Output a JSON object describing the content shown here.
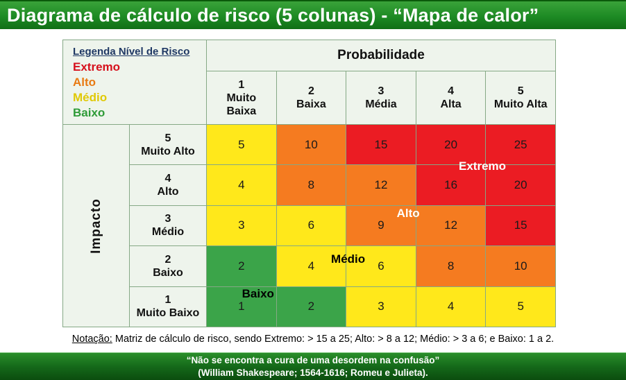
{
  "title": "Diagrama de cálculo de risco (5 colunas) - “Mapa de calor”",
  "legend": {
    "title": "Legenda Nível de Risco",
    "items": [
      {
        "label": "Extremo",
        "color": "#D6101C"
      },
      {
        "label": "Alto",
        "color": "#E87A12"
      },
      {
        "label": "Médio",
        "color": "#E0C904"
      },
      {
        "label": "Baixo",
        "color": "#2F9B38"
      }
    ]
  },
  "probability": {
    "header": "Probabilidade",
    "levels": [
      {
        "num": "1",
        "label": "Muito Baixa"
      },
      {
        "num": "2",
        "label": "Baixa"
      },
      {
        "num": "3",
        "label": "Média"
      },
      {
        "num": "4",
        "label": "Alta"
      },
      {
        "num": "5",
        "label": "Muito Alta"
      }
    ]
  },
  "impact": {
    "header": "Impacto",
    "levels": [
      {
        "num": "5",
        "label": "Muito Alto"
      },
      {
        "num": "4",
        "label": "Alto"
      },
      {
        "num": "3",
        "label": "Médio"
      },
      {
        "num": "2",
        "label": "Baixo"
      },
      {
        "num": "1",
        "label": "Muito Baixo"
      }
    ]
  },
  "matrix": {
    "values": [
      [
        5,
        10,
        15,
        20,
        25
      ],
      [
        4,
        8,
        12,
        16,
        20
      ],
      [
        3,
        6,
        9,
        12,
        15
      ],
      [
        2,
        4,
        6,
        8,
        10
      ],
      [
        1,
        2,
        3,
        4,
        5
      ]
    ],
    "levels": [
      [
        "medio",
        "alto",
        "extremo",
        "extremo",
        "extremo"
      ],
      [
        "medio",
        "alto",
        "alto",
        "extremo",
        "extremo"
      ],
      [
        "medio",
        "medio",
        "alto",
        "alto",
        "extremo"
      ],
      [
        "baixo",
        "medio",
        "medio",
        "alto",
        "alto"
      ],
      [
        "baixo",
        "baixo",
        "medio",
        "medio",
        "medio"
      ]
    ],
    "level_colors": {
      "extremo": "#EB1C23",
      "alto": "#F57B20",
      "medio": "#FFE81B",
      "baixo": "#3BA449"
    },
    "zone_labels": [
      {
        "text": "Extremo",
        "color": "#FFFFFF"
      },
      {
        "text": "Alto",
        "color": "#FFFFFF"
      },
      {
        "text": "Médio",
        "color": "#000000"
      },
      {
        "text": "Baixo",
        "color": "#000000"
      }
    ]
  },
  "notation": {
    "label": "Notação:",
    "text": " Matriz de cálculo de risco, sendo Extremo: > 15 a 25; Alto: > 8 a 12; Médio: > 3 a 6; e Baixo: 1 a 2."
  },
  "footer": {
    "line1": "“Não se encontra a cura de uma desordem na confusão”",
    "line2": "(William Shakespeare; 1564-1616; Romeu e Julieta)."
  }
}
